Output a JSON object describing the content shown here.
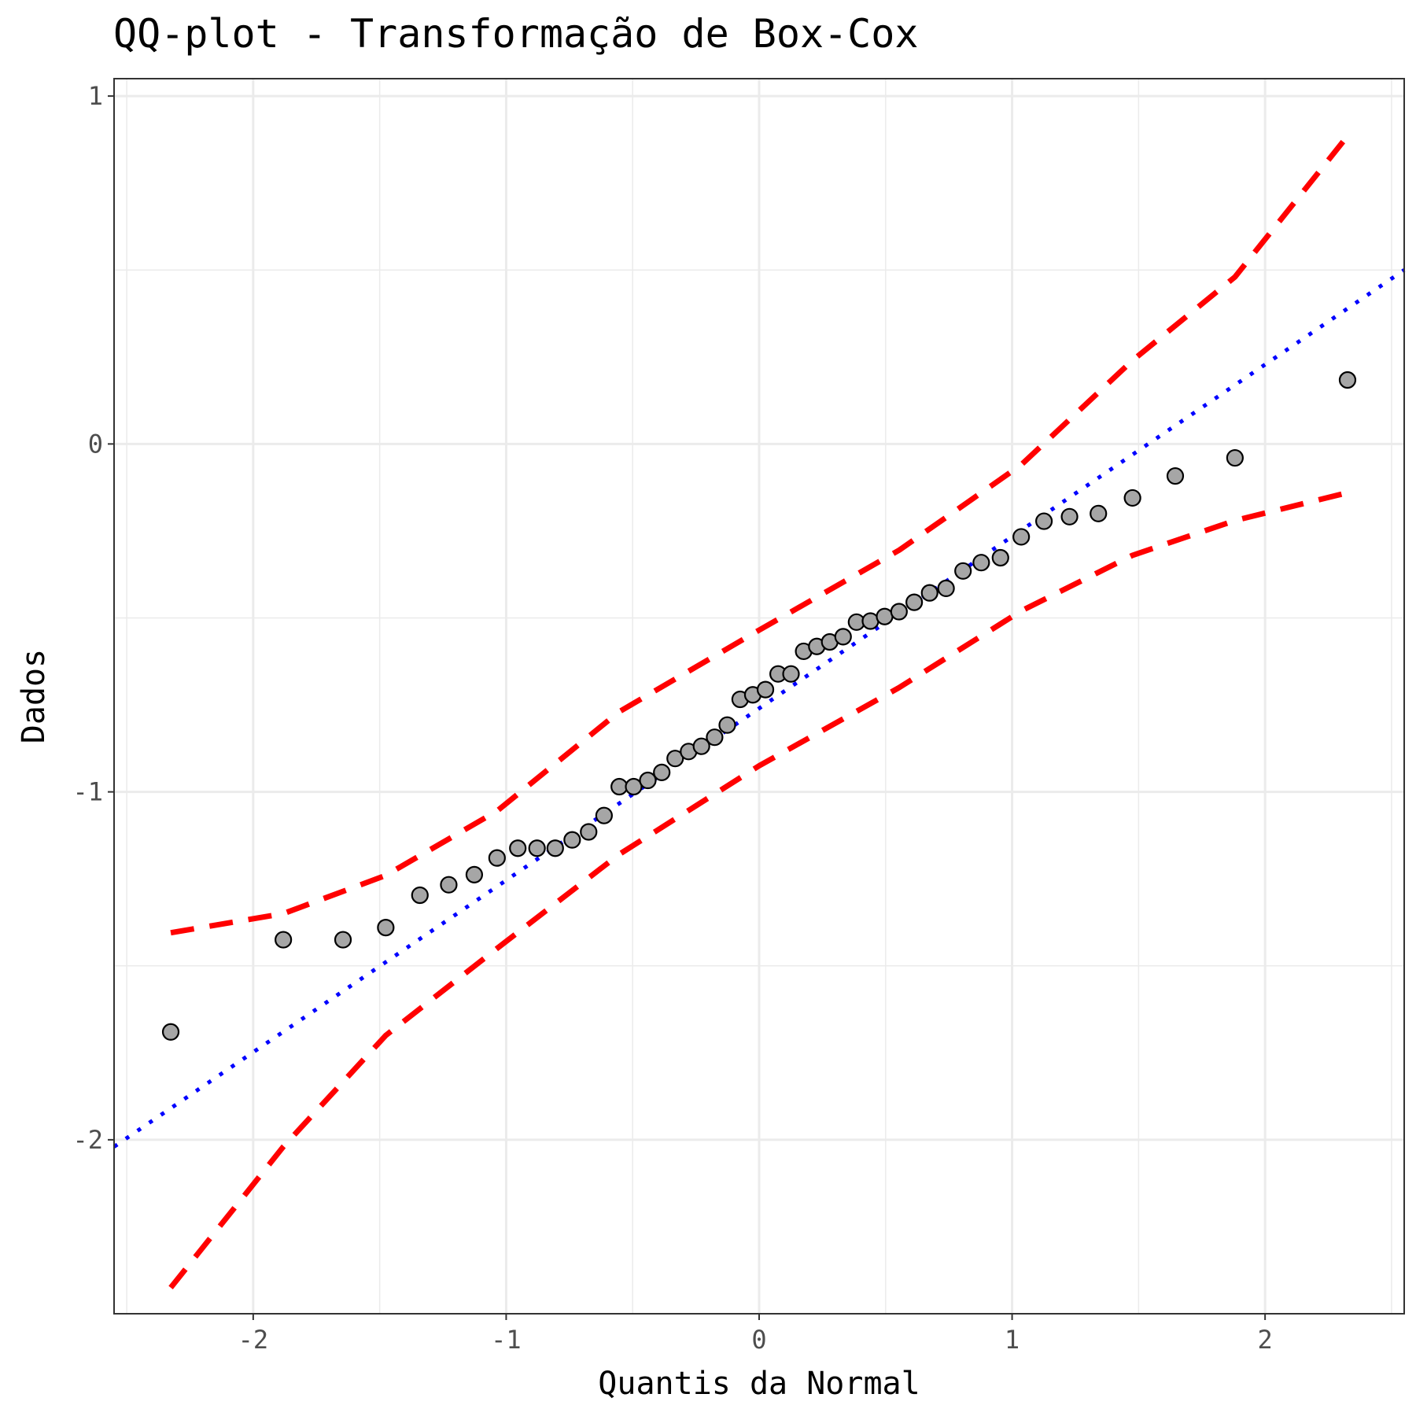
{
  "chart_data": {
    "type": "scatter",
    "title": "QQ-plot - Transformação de Box-Cox",
    "xlabel": "Quantis da Normal",
    "ylabel": "Dados",
    "xlim": [
      -2.55,
      2.55
    ],
    "ylim": [
      -2.5,
      1.05
    ],
    "x_ticks": [
      -2,
      -1,
      0,
      1,
      2
    ],
    "x_tick_labels": [
      "-2",
      "-1",
      "0",
      "1",
      "2"
    ],
    "y_ticks": [
      -2,
      -1,
      0,
      1
    ],
    "y_tick_labels": [
      "-2",
      "-1",
      "0",
      "1"
    ],
    "grid": true,
    "points": {
      "x": [
        -2.326,
        -1.881,
        -1.645,
        -1.476,
        -1.341,
        -1.227,
        -1.126,
        -1.036,
        -0.954,
        -0.878,
        -0.806,
        -0.739,
        -0.674,
        -0.613,
        -0.553,
        -0.496,
        -0.44,
        -0.385,
        -0.332,
        -0.279,
        -0.228,
        -0.176,
        -0.126,
        -0.075,
        -0.025,
        0.025,
        0.075,
        0.126,
        0.176,
        0.228,
        0.279,
        0.332,
        0.385,
        0.44,
        0.496,
        0.553,
        0.613,
        0.674,
        0.739,
        0.806,
        0.878,
        0.954,
        1.036,
        1.126,
        1.227,
        1.341,
        1.476,
        1.645,
        1.881,
        2.326
      ],
      "y": [
        -1.69,
        -1.425,
        -1.425,
        -1.39,
        -1.297,
        -1.267,
        -1.238,
        -1.19,
        -1.162,
        -1.162,
        -1.162,
        -1.138,
        -1.115,
        -1.068,
        -0.985,
        -0.985,
        -0.967,
        -0.944,
        -0.904,
        -0.884,
        -0.869,
        -0.843,
        -0.808,
        -0.734,
        -0.721,
        -0.706,
        -0.661,
        -0.661,
        -0.596,
        -0.582,
        -0.569,
        -0.554,
        -0.512,
        -0.509,
        -0.496,
        -0.482,
        -0.455,
        -0.428,
        -0.415,
        -0.365,
        -0.341,
        -0.327,
        -0.267,
        -0.222,
        -0.209,
        -0.2,
        -0.155,
        -0.092,
        -0.04,
        0.184
      ],
      "fill": "#a6a6a6",
      "stroke": "#000000"
    },
    "reference_line": {
      "style": "dotted",
      "color": "#0000ff",
      "x": [
        -2.55,
        2.55
      ],
      "y": [
        -2.02,
        0.5
      ]
    },
    "confidence_band": {
      "style": "dashed",
      "color": "#ff0000",
      "x": [
        -2.326,
        -1.881,
        -1.476,
        -1.036,
        -0.554,
        0.0,
        0.554,
        1.036,
        1.476,
        1.881,
        2.326
      ],
      "upper": [
        -1.405,
        -1.35,
        -1.24,
        -1.055,
        -0.77,
        -0.535,
        -0.305,
        -0.06,
        0.24,
        0.48,
        0.885
      ],
      "lower": [
        -2.425,
        -2.02,
        -1.7,
        -1.45,
        -1.18,
        -0.925,
        -0.7,
        -0.48,
        -0.32,
        -0.22,
        -0.14
      ]
    }
  }
}
